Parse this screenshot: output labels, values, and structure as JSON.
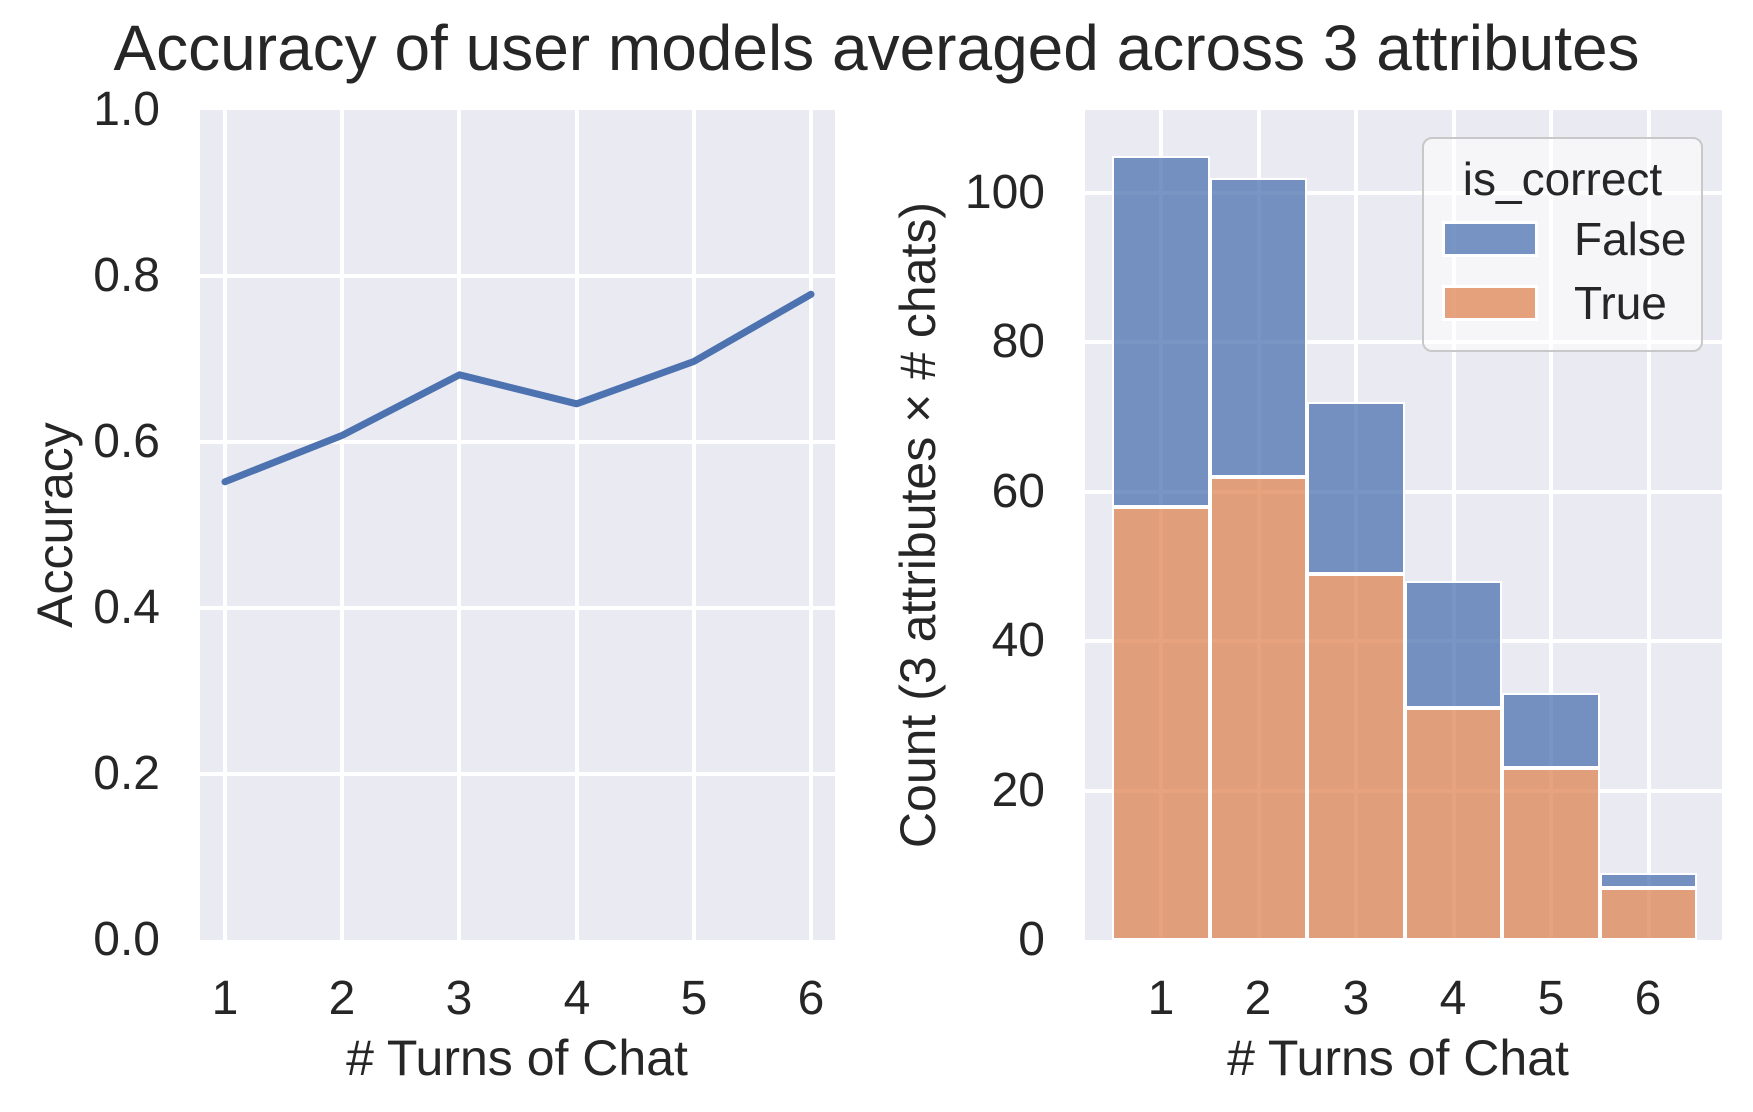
{
  "title": "Accuracy of user models averaged across 3 attributes",
  "colors": {
    "axes_background": "#eaeaf2",
    "grid": "#ffffff",
    "line": "#4c72b0",
    "bar_false": "#4c72b0",
    "bar_true": "#dd8452",
    "text": "#262626",
    "legend_border": "#c8c8c8"
  },
  "chart_data": [
    {
      "type": "line",
      "title": "",
      "xlabel": "# Turns of Chat",
      "ylabel": "Accuracy",
      "x": [
        1,
        2,
        3,
        4,
        5,
        6
      ],
      "y": [
        0.552,
        0.608,
        0.681,
        0.646,
        0.697,
        0.778
      ],
      "xtick_labels": [
        "1",
        "2",
        "3",
        "4",
        "5",
        "6"
      ],
      "ytick_labels": [
        "1.0",
        "0.8",
        "0.6",
        "0.4",
        "0.2",
        "0.0"
      ],
      "ytick_values": [
        1.0,
        0.8,
        0.6,
        0.4,
        0.2,
        0.0
      ],
      "xlim": [
        0.75,
        6.25
      ],
      "ylim": [
        0.0,
        1.0
      ],
      "grid": true,
      "legend_position": "none",
      "line_color": "#4c72b0"
    },
    {
      "type": "bar",
      "stacked": true,
      "title": "",
      "xlabel": "# Turns of Chat",
      "ylabel": "Count (3 attributes × # chats)",
      "categories": [
        "1",
        "2",
        "3",
        "4",
        "5",
        "6"
      ],
      "series": [
        {
          "name": "True",
          "values": [
            58,
            62,
            49,
            31,
            23,
            7
          ],
          "color": "#dd8452"
        },
        {
          "name": "False",
          "values": [
            47,
            40,
            23,
            17,
            10,
            2
          ],
          "color": "#4c72b0"
        }
      ],
      "totals": [
        105,
        102,
        72,
        48,
        33,
        9
      ],
      "bar_alpha": 0.75,
      "xtick_labels": [
        "1",
        "2",
        "3",
        "4",
        "5",
        "6"
      ],
      "ytick_labels": [
        "100",
        "80",
        "60",
        "40",
        "20",
        "0"
      ],
      "ytick_values": [
        100,
        80,
        60,
        40,
        20,
        0
      ],
      "ylim": [
        0,
        111
      ],
      "grid": true,
      "legend": {
        "title": "is_correct",
        "position": "upper right",
        "entries": [
          {
            "label": "False",
            "color": "#4c72b0"
          },
          {
            "label": "True",
            "color": "#dd8452"
          }
        ]
      }
    }
  ]
}
